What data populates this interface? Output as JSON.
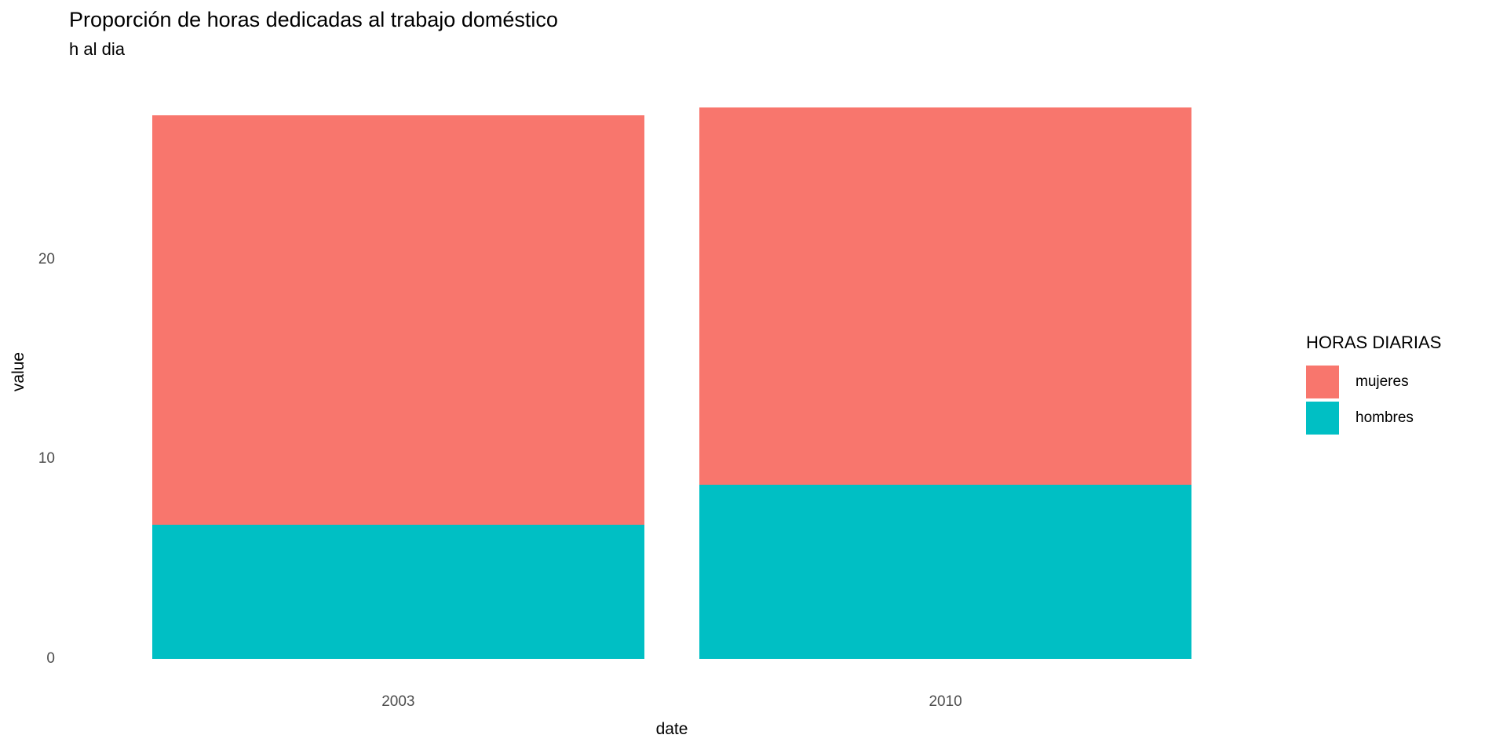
{
  "chart_data": {
    "type": "bar",
    "stacked": true,
    "title": "Proporción de horas dedicadas al trabajo doméstico",
    "subtitle": "h al dia",
    "xlabel": "date",
    "ylabel": "value",
    "categories": [
      "2003",
      "2010"
    ],
    "series": [
      {
        "name": "mujeres",
        "color": "#F8766D",
        "values": [
          20.5,
          18.9
        ]
      },
      {
        "name": "hombres",
        "color": "#00BFC4",
        "values": [
          6.7,
          8.7
        ]
      }
    ],
    "yticks": [
      0,
      10,
      20
    ],
    "ylim": [
      0,
      28.9
    ],
    "grid": "off",
    "legend_title": "HORAS DIARIAS",
    "legend_position": "right",
    "background": "#ffffff",
    "tick_text_color": "#4d4d4d"
  }
}
